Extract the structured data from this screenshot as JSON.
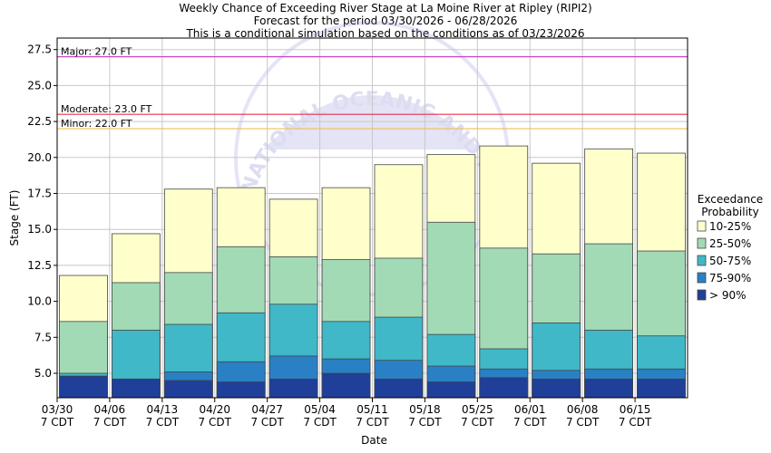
{
  "chart_data": {
    "type": "bar",
    "title": "Weekly Chance of Exceeding River Stage at La Moine River at Ripley (RIPI2)",
    "subtitle_1": "Forecast for the period 03/30/2026 - 06/28/2026",
    "subtitle_2": "This is a conditional simulation based on the conditions as of 03/23/2026",
    "xlabel": "Date",
    "ylabel": "Stage (FT)",
    "ylim": [
      3.3,
      28.3
    ],
    "yticks": [
      "5.0",
      "7.5",
      "10.0",
      "12.5",
      "15.0",
      "17.5",
      "20.0",
      "22.5",
      "25.0",
      "27.5"
    ],
    "ytick_values": [
      5.0,
      7.5,
      10.0,
      12.5,
      15.0,
      17.5,
      20.0,
      22.5,
      25.0,
      27.5
    ],
    "categories": [
      {
        "date": "03/30",
        "tz": "7 CDT"
      },
      {
        "date": "04/06",
        "tz": "7 CDT"
      },
      {
        "date": "04/13",
        "tz": "7 CDT"
      },
      {
        "date": "04/20",
        "tz": "7 CDT"
      },
      {
        "date": "04/27",
        "tz": "7 CDT"
      },
      {
        "date": "05/04",
        "tz": "7 CDT"
      },
      {
        "date": "05/11",
        "tz": "7 CDT"
      },
      {
        "date": "05/18",
        "tz": "7 CDT"
      },
      {
        "date": "05/25",
        "tz": "7 CDT"
      },
      {
        "date": "06/01",
        "tz": "7 CDT"
      },
      {
        "date": "06/08",
        "tz": "7 CDT"
      },
      {
        "date": "06/15",
        "tz": "7 CDT"
      }
    ],
    "series": [
      {
        "name": "> 90%",
        "color": "#1f3f99",
        "values": [
          4.8,
          4.6,
          4.5,
          4.4,
          4.6,
          5.0,
          4.6,
          4.4,
          4.7,
          4.6,
          4.6,
          4.6
        ]
      },
      {
        "name": "75-90%",
        "color": "#2a80c4",
        "values": [
          4.8,
          4.6,
          5.1,
          5.8,
          6.2,
          6.0,
          5.9,
          5.5,
          5.3,
          5.2,
          5.3,
          5.3
        ]
      },
      {
        "name": "50-75%",
        "color": "#40b8c8",
        "values": [
          5.0,
          8.0,
          8.4,
          9.2,
          9.8,
          8.6,
          8.9,
          7.7,
          6.7,
          8.5,
          8.0,
          7.6
        ]
      },
      {
        "name": "25-50%",
        "color": "#a2dab5",
        "values": [
          8.6,
          11.3,
          12.0,
          13.8,
          13.1,
          12.9,
          13.0,
          15.5,
          13.7,
          13.3,
          14.0,
          13.5
        ]
      },
      {
        "name": "10-25%",
        "color": "#ffffcc",
        "values": [
          11.8,
          14.7,
          17.8,
          17.9,
          17.1,
          17.9,
          19.5,
          20.2,
          20.8,
          19.6,
          20.6,
          20.3
        ]
      }
    ],
    "thresholds": [
      {
        "label": "Major: 27.0 FT",
        "value": 27.0,
        "color": "#cc44cc"
      },
      {
        "label": "Moderate: 23.0 FT",
        "value": 23.0,
        "color": "#e8304a"
      },
      {
        "label": "Minor: 22.0 FT",
        "value": 22.0,
        "color": "#f0c050"
      }
    ],
    "legend": {
      "title_1": "Exceedance",
      "title_2": "Probability",
      "order": [
        "10-25%",
        "25-50%",
        "50-75%",
        "75-90%",
        "> 90%"
      ],
      "placement": "right"
    },
    "watermark": "NATIONAL OCEANIC AND ATMOSPHERIC ADMINISTRATION",
    "grid": true
  }
}
